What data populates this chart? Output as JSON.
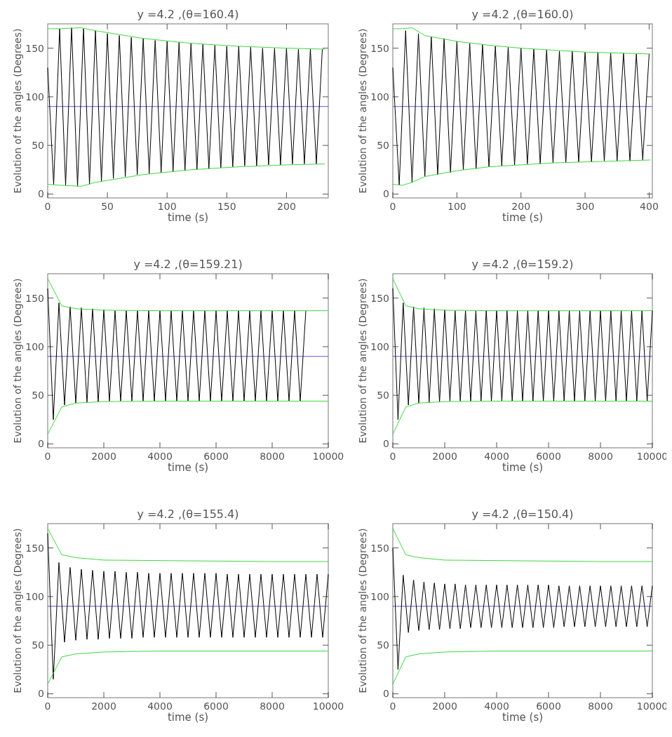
{
  "chart_data": [
    {
      "type": "line",
      "title": "y =4.2 ,(θ=160.4)",
      "xlabel": "time (s)",
      "ylabel": "Evolution of the angles (Degrees)",
      "xlim": [
        0,
        235
      ],
      "xticks": [
        0,
        50,
        100,
        150,
        200
      ],
      "ylim": [
        -4,
        175
      ],
      "yticks": [
        0,
        50,
        100,
        150
      ],
      "grid": false,
      "ref_lines": [
        {
          "axis": "y",
          "value": 90,
          "color": "#3030c8"
        }
      ],
      "series": [
        {
          "color": "#000000",
          "x": [
            0,
            5,
            10,
            15,
            20,
            25,
            30,
            35,
            40,
            45,
            50,
            55,
            60,
            65,
            70,
            75,
            80,
            85,
            90,
            95,
            100,
            105,
            110,
            115,
            120,
            125,
            130,
            135,
            140,
            145,
            150,
            155,
            160,
            165,
            170,
            175,
            180,
            185,
            190,
            195,
            200,
            205,
            210,
            215,
            220,
            225,
            230
          ],
          "values": [
            130,
            10,
            170,
            9,
            171,
            8,
            170,
            10,
            168,
            13,
            165,
            16,
            163,
            18,
            161,
            20,
            160,
            21,
            158,
            22,
            157,
            23,
            156,
            24,
            155,
            25,
            154,
            26,
            153,
            27,
            152,
            28,
            152,
            29,
            151,
            29,
            150,
            30,
            150,
            30,
            150,
            31,
            149,
            31,
            149,
            31,
            149
          ]
        },
        {
          "color": "#40d840",
          "x": [
            0,
            10,
            28,
            40,
            80,
            120,
            160,
            200,
            232
          ],
          "values": [
            170,
            170,
            171,
            168,
            160,
            155,
            152,
            150,
            149
          ]
        },
        {
          "color": "#40d840",
          "x": [
            0,
            10,
            28,
            40,
            80,
            120,
            160,
            200,
            232
          ],
          "values": [
            10,
            9,
            8,
            12,
            20,
            25,
            28,
            30,
            31
          ]
        }
      ]
    },
    {
      "type": "line",
      "title": "y =4.2 ,(θ=160.0)",
      "xlabel": "time (s)",
      "ylabel": "Evolution of the angles (Degrees)",
      "xlim": [
        0,
        405
      ],
      "xticks": [
        0,
        100,
        200,
        300,
        400
      ],
      "ylim": [
        -4,
        175
      ],
      "yticks": [
        0,
        50,
        100,
        150
      ],
      "grid": false,
      "ref_lines": [
        {
          "axis": "y",
          "value": 90,
          "color": "#3030c8"
        }
      ],
      "series": [
        {
          "color": "#000000",
          "x": [
            0,
            10,
            20,
            30,
            40,
            50,
            60,
            70,
            80,
            90,
            100,
            110,
            120,
            130,
            140,
            150,
            160,
            170,
            180,
            190,
            200,
            210,
            220,
            230,
            240,
            250,
            260,
            270,
            280,
            290,
            300,
            310,
            320,
            330,
            340,
            350,
            360,
            370,
            380,
            390,
            400
          ],
          "values": [
            130,
            9,
            168,
            12,
            165,
            18,
            162,
            20,
            160,
            22,
            157,
            25,
            155,
            26,
            154,
            28,
            152,
            29,
            151,
            30,
            150,
            31,
            149,
            31,
            148,
            32,
            147,
            32,
            147,
            33,
            146,
            33,
            146,
            34,
            145,
            34,
            145,
            34,
            144,
            35,
            144
          ]
        },
        {
          "color": "#40d840",
          "x": [
            0,
            15,
            30,
            50,
            100,
            150,
            200,
            250,
            300,
            350,
            402
          ],
          "values": [
            170,
            170,
            171,
            163,
            157,
            153,
            150,
            148,
            146,
            145,
            144
          ]
        },
        {
          "color": "#40d840",
          "x": [
            0,
            15,
            30,
            50,
            100,
            150,
            200,
            250,
            300,
            350,
            402
          ],
          "values": [
            10,
            9,
            12,
            18,
            24,
            28,
            30,
            32,
            33,
            34,
            35
          ]
        }
      ]
    },
    {
      "type": "line",
      "title": "y =4.2 ,(θ=159.21)",
      "xlabel": "time (s)",
      "ylabel": "Evolution of the angles (Degrees)",
      "xlim": [
        0,
        10000
      ],
      "xticks": [
        0,
        2000,
        4000,
        6000,
        8000,
        10000
      ],
      "ylim": [
        -4,
        175
      ],
      "yticks": [
        0,
        50,
        100,
        150
      ],
      "grid": false,
      "ref_lines": [
        {
          "axis": "y",
          "value": 90,
          "color": "#3030c8"
        }
      ],
      "series": [
        {
          "color": "#000000",
          "x": [
            0,
            200,
            400,
            600,
            800,
            1000,
            1200,
            1400,
            1600,
            1800,
            2000,
            2200,
            2400,
            2600,
            2800,
            3000,
            3200,
            3400,
            3600,
            3800,
            4000,
            4200,
            4400,
            4600,
            4800,
            5000,
            5200,
            5400,
            5600,
            5800,
            6000,
            6200,
            6400,
            6600,
            6800,
            7000,
            7200,
            7400,
            7600,
            7800,
            8000,
            8200,
            8400,
            8600,
            8800,
            9000,
            9200
          ],
          "values": [
            160,
            25,
            145,
            40,
            141,
            42,
            140,
            43,
            139,
            43,
            138,
            44,
            137,
            44,
            137,
            44,
            137,
            44,
            137,
            44,
            137,
            44,
            137,
            44,
            137,
            44,
            137,
            44,
            137,
            44,
            137,
            44,
            137,
            44,
            137,
            44,
            137,
            44,
            137,
            44,
            137,
            44,
            137,
            44,
            137,
            44,
            137
          ]
        },
        {
          "color": "#40d840",
          "x": [
            0,
            500,
            1000,
            2000,
            4000,
            6000,
            8000,
            10000
          ],
          "values": [
            170,
            142,
            139,
            137.5,
            137,
            137,
            137,
            137
          ]
        },
        {
          "color": "#40d840",
          "x": [
            0,
            500,
            1000,
            2000,
            4000,
            6000,
            8000,
            10000
          ],
          "values": [
            10,
            38,
            42,
            43.5,
            44,
            44,
            44,
            44
          ]
        }
      ]
    },
    {
      "type": "line",
      "title": "y =4.2 ,(θ=159.2)",
      "xlabel": "time (s)",
      "ylabel": "Evolution of the angles (Degrees)",
      "xlim": [
        0,
        10000
      ],
      "xticks": [
        0,
        2000,
        4000,
        6000,
        8000,
        10000
      ],
      "ylim": [
        -4,
        175
      ],
      "yticks": [
        0,
        50,
        100,
        150
      ],
      "grid": false,
      "ref_lines": [
        {
          "axis": "y",
          "value": 90,
          "color": "#3030c8"
        }
      ],
      "series": [
        {
          "color": "#000000",
          "x": [
            0,
            200,
            400,
            600,
            800,
            1000,
            1200,
            1400,
            1600,
            1800,
            2000,
            2200,
            2400,
            2600,
            2800,
            3000,
            3200,
            3400,
            3600,
            3800,
            4000,
            4200,
            4400,
            4600,
            4800,
            5000,
            5200,
            5400,
            5600,
            5800,
            6000,
            6200,
            6400,
            6600,
            6800,
            7000,
            7200,
            7400,
            7600,
            7800,
            8000,
            8200,
            8400,
            8600,
            8800,
            9000,
            9200,
            9400,
            9600,
            9800,
            10000
          ],
          "values": [
            160,
            25,
            145,
            40,
            141,
            42,
            140,
            43,
            139,
            43,
            138,
            44,
            137,
            44,
            137,
            44,
            137,
            44,
            137,
            44,
            137,
            44,
            137,
            44,
            137,
            44,
            137,
            44,
            137,
            44,
            137,
            44,
            137,
            44,
            137,
            44,
            137,
            44,
            137,
            44,
            137,
            44,
            137,
            44,
            137,
            44,
            137,
            44,
            137,
            44,
            137
          ]
        },
        {
          "color": "#40d840",
          "x": [
            0,
            500,
            1000,
            2000,
            4000,
            6000,
            8000,
            10000
          ],
          "values": [
            170,
            142,
            139,
            137.5,
            137,
            137,
            137,
            137
          ]
        },
        {
          "color": "#40d840",
          "x": [
            0,
            500,
            1000,
            2000,
            4000,
            6000,
            8000,
            10000
          ],
          "values": [
            10,
            38,
            42,
            43.5,
            44,
            44,
            44,
            44
          ]
        }
      ]
    },
    {
      "type": "line",
      "title": "y =4.2 ,(θ=155.4)",
      "xlabel": "time (s)",
      "ylabel": "Evolution of the angles (Degrees)",
      "xlim": [
        0,
        10000
      ],
      "xticks": [
        0,
        2000,
        4000,
        6000,
        8000,
        10000
      ],
      "ylim": [
        -4,
        175
      ],
      "yticks": [
        0,
        50,
        100,
        150
      ],
      "grid": false,
      "ref_lines": [
        {
          "axis": "y",
          "value": 90,
          "color": "#3030c8"
        }
      ],
      "series": [
        {
          "color": "#000000",
          "x": [
            0,
            200,
            400,
            600,
            800,
            1000,
            1200,
            1400,
            1600,
            1800,
            2000,
            2200,
            2400,
            2600,
            2800,
            3000,
            3200,
            3400,
            3600,
            3800,
            4000,
            4200,
            4400,
            4600,
            4800,
            5000,
            5200,
            5400,
            5600,
            5800,
            6000,
            6200,
            6400,
            6600,
            6800,
            7000,
            7200,
            7400,
            7600,
            7800,
            8000,
            8200,
            8400,
            8600,
            8800,
            9000,
            9200,
            9400,
            9600,
            9800,
            10000
          ],
          "values": [
            165,
            15,
            135,
            53,
            130,
            55,
            128,
            56,
            127,
            56,
            126,
            57,
            126,
            57,
            125,
            57,
            125,
            58,
            124,
            58,
            124,
            58,
            124,
            58,
            124,
            58,
            124,
            58,
            124,
            58,
            124,
            58,
            123,
            58,
            123,
            58,
            123,
            58,
            123,
            58,
            123,
            58,
            123,
            58,
            123,
            58,
            123,
            58,
            123,
            58,
            123
          ]
        },
        {
          "color": "#40d840",
          "x": [
            0,
            500,
            1000,
            2000,
            4000,
            6000,
            8000,
            10000
          ],
          "values": [
            170,
            143,
            140,
            137.5,
            137,
            136.5,
            136,
            136
          ]
        },
        {
          "color": "#40d840",
          "x": [
            0,
            500,
            1000,
            2000,
            4000,
            6000,
            8000,
            10000
          ],
          "values": [
            10,
            38,
            41,
            43,
            44,
            44,
            44,
            44
          ]
        }
      ]
    },
    {
      "type": "line",
      "title": "y =4.2 ,(θ=150.4)",
      "xlabel": "time (s)",
      "ylabel": "Evolution of the angles (Degrees)",
      "xlim": [
        0,
        10000
      ],
      "xticks": [
        0,
        2000,
        4000,
        6000,
        8000,
        10000
      ],
      "ylim": [
        -4,
        175
      ],
      "yticks": [
        0,
        50,
        100,
        150
      ],
      "grid": false,
      "ref_lines": [
        {
          "axis": "y",
          "value": 90,
          "color": "#3030c8"
        }
      ],
      "series": [
        {
          "color": "#000000",
          "x": [
            0,
            200,
            400,
            600,
            800,
            1000,
            1200,
            1400,
            1600,
            1800,
            2000,
            2200,
            2400,
            2600,
            2800,
            3000,
            3200,
            3400,
            3600,
            3800,
            4000,
            4200,
            4400,
            4600,
            4800,
            5000,
            5200,
            5400,
            5600,
            5800,
            6000,
            6200,
            6400,
            6600,
            6800,
            7000,
            7200,
            7400,
            7600,
            7800,
            8000,
            8200,
            8400,
            8600,
            8800,
            9000,
            9200,
            9400,
            9600,
            9800,
            10000
          ],
          "values": [
            150,
            25,
            122,
            63,
            117,
            65,
            115,
            66,
            114,
            66,
            113,
            67,
            113,
            67,
            112,
            68,
            112,
            68,
            112,
            68,
            112,
            68,
            112,
            68,
            112,
            68,
            112,
            68,
            112,
            68,
            112,
            68,
            111,
            69,
            111,
            69,
            111,
            69,
            111,
            69,
            111,
            69,
            111,
            69,
            111,
            69,
            111,
            69,
            111,
            69,
            111
          ]
        },
        {
          "color": "#40d840",
          "x": [
            0,
            500,
            1000,
            2000,
            4000,
            6000,
            8000,
            10000
          ],
          "values": [
            170,
            143,
            140,
            137.5,
            137,
            136.5,
            136,
            136
          ]
        },
        {
          "color": "#40d840",
          "x": [
            0,
            500,
            1000,
            2000,
            4000,
            6000,
            8000,
            10000
          ],
          "values": [
            10,
            38,
            41,
            43,
            44,
            44,
            44,
            44
          ]
        }
      ]
    }
  ]
}
